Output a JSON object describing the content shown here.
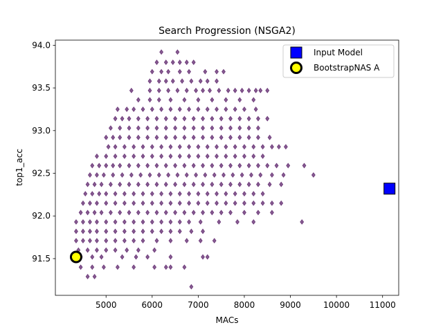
{
  "chart_data": {
    "type": "scatter",
    "title": "Search Progression (NSGA2)",
    "xlabel": "MACs",
    "ylabel": "top1_acc",
    "xlim": [
      3900,
      11350
    ],
    "ylim": [
      91.07,
      94.06
    ],
    "xticks": [
      5000,
      6000,
      7000,
      8000,
      9000,
      10000,
      11000
    ],
    "yticks": [
      91.5,
      92.0,
      92.5,
      93.0,
      93.5,
      94.0
    ],
    "grid": false,
    "legend_position": "top-right",
    "legend": [
      {
        "label": "Input Model",
        "marker": "square",
        "fill": "#0000ff",
        "stroke": "#000000"
      },
      {
        "label": "BootstrapNAS A",
        "marker": "circle",
        "fill": "#ffff00",
        "stroke": "#000000"
      }
    ],
    "series": [
      {
        "name": "Input Model",
        "marker": "square",
        "color": "#0000ff",
        "points": [
          [
            11150,
            92.32
          ]
        ]
      },
      {
        "name": "BootstrapNAS A",
        "marker": "circle",
        "color": "#ffff00",
        "points": [
          [
            4350,
            91.52
          ]
        ]
      }
    ],
    "search_points": {
      "marker": "diamond",
      "color": "#440154",
      "opacity": 0.65,
      "rows": [
        {
          "y": 93.92,
          "x": [
            6200,
            6550
          ]
        },
        {
          "y": 93.8,
          "x": [
            6100,
            6300,
            6450,
            6600,
            6750,
            6900
          ]
        },
        {
          "y": 93.69,
          "x": [
            6000,
            6200,
            6350,
            6600,
            6800,
            7150,
            7400,
            7550
          ]
        },
        {
          "y": 93.58,
          "x": [
            5950,
            6150,
            6300,
            6450,
            6650,
            6850,
            7050,
            7200,
            7400
          ]
        },
        {
          "y": 93.47,
          "x": [
            5550,
            5950,
            6150,
            6350,
            6550,
            6750,
            6950,
            7100,
            7250,
            7450,
            7650,
            7800,
            7950,
            8100,
            8250,
            8350,
            8500
          ]
        },
        {
          "y": 93.36,
          "x": [
            5700,
            5950,
            6150,
            6400,
            6700,
            7000,
            7300,
            7600,
            7900,
            8200
          ]
        },
        {
          "y": 93.25,
          "x": [
            5250,
            5450,
            5600,
            5800,
            6000,
            6200,
            6400,
            6600,
            6800,
            7000,
            7200,
            7400,
            7600,
            7800,
            8000,
            8250
          ]
        },
        {
          "y": 93.14,
          "x": [
            5200,
            5350,
            5500,
            5700,
            5900,
            6100,
            6300,
            6500,
            6700,
            6900,
            7100,
            7300,
            7500,
            7700,
            7900,
            8100,
            8300,
            8500
          ]
        },
        {
          "y": 93.03,
          "x": [
            5100,
            5300,
            5500,
            5700,
            5900,
            6100,
            6300,
            6500,
            6700,
            6900,
            7100,
            7300,
            7500,
            7700,
            7900,
            8100,
            8300
          ]
        },
        {
          "y": 92.92,
          "x": [
            5000,
            5150,
            5300,
            5500,
            5700,
            5900,
            6100,
            6300,
            6500,
            6700,
            6900,
            7100,
            7300,
            7500,
            7700,
            7900,
            8100,
            8300,
            8550
          ]
        },
        {
          "y": 92.81,
          "x": [
            5050,
            5200,
            5400,
            5600,
            5800,
            6000,
            6200,
            6400,
            6600,
            6800,
            7000,
            7200,
            7400,
            7600,
            7800,
            8000,
            8200,
            8400,
            8600,
            8750,
            8900
          ]
        },
        {
          "y": 92.7,
          "x": [
            4800,
            5000,
            5200,
            5400,
            5600,
            5800,
            6000,
            6200,
            6400,
            6600,
            6800,
            7000,
            7200,
            7400,
            7600,
            7800,
            8000,
            8200,
            8400
          ]
        },
        {
          "y": 92.59,
          "x": [
            4700,
            4850,
            5000,
            5150,
            5300,
            5500,
            5700,
            5900,
            6100,
            6300,
            6500,
            6700,
            6900,
            7100,
            7300,
            7500,
            7700,
            7900,
            8100,
            8300,
            8500,
            8700,
            8950,
            9300
          ]
        },
        {
          "y": 92.48,
          "x": [
            4650,
            4800,
            4950,
            5150,
            5350,
            5550,
            5750,
            5950,
            6150,
            6350,
            6550,
            6750,
            6950,
            7150,
            7350,
            7550,
            7750,
            7950,
            8150,
            8350,
            8600,
            8850,
            9500
          ]
        },
        {
          "y": 92.37,
          "x": [
            4600,
            4750,
            4900,
            5100,
            5300,
            5500,
            5700,
            5900,
            6100,
            6300,
            6500,
            6700,
            6900,
            7100,
            7300,
            7500,
            7700,
            7900,
            8100,
            8300,
            8550,
            8800
          ]
        },
        {
          "y": 92.26,
          "x": [
            4550,
            4700,
            4850,
            5000,
            5200,
            5400,
            5600,
            5800,
            6000,
            6200,
            6400,
            6600,
            6800,
            7000,
            7200,
            7400,
            7600,
            7800,
            8000,
            8200,
            8400
          ]
        },
        {
          "y": 92.15,
          "x": [
            4500,
            4650,
            4800,
            5000,
            5200,
            5400,
            5600,
            5800,
            6000,
            6200,
            6400,
            6600,
            6800,
            7000,
            7200,
            7400,
            7600,
            7800,
            8000,
            8200,
            8400,
            8600,
            8800
          ]
        },
        {
          "y": 92.04,
          "x": [
            4450,
            4600,
            4750,
            4900,
            5100,
            5300,
            5500,
            5700,
            5900,
            6100,
            6300,
            6500,
            6700,
            6900,
            7100,
            7300,
            7500,
            7700,
            8000,
            8300,
            8600
          ]
        },
        {
          "y": 91.93,
          "x": [
            4350,
            4500,
            4650,
            4800,
            5000,
            5200,
            5400,
            5600,
            5800,
            6000,
            6200,
            6400,
            6600,
            6800,
            7050,
            7450,
            7850,
            8200,
            9250
          ]
        },
        {
          "y": 91.82,
          "x": [
            4350,
            4500,
            4650,
            4800,
            5000,
            5200,
            5400,
            5600,
            5800,
            6000,
            6200,
            6400,
            6600,
            6850,
            7100
          ]
        },
        {
          "y": 91.71,
          "x": [
            4350,
            4500,
            4650,
            4800,
            5000,
            5200,
            5400,
            5600,
            5800,
            6100,
            6400,
            6750,
            7050,
            7350
          ]
        },
        {
          "y": 91.6,
          "x": [
            4400,
            4600,
            4800,
            5000,
            5200,
            5450,
            5700,
            6050
          ]
        },
        {
          "y": 91.52,
          "x": [
            4450,
            4700,
            4900,
            5350,
            5650,
            5900,
            6400,
            7100,
            7200
          ]
        },
        {
          "y": 91.4,
          "x": [
            4450,
            4700,
            4950,
            5250,
            5600,
            6050,
            6300,
            6400,
            6700
          ]
        },
        {
          "y": 91.29,
          "x": [
            4600,
            4750
          ]
        },
        {
          "y": 91.17,
          "x": [
            6850
          ]
        }
      ]
    }
  }
}
